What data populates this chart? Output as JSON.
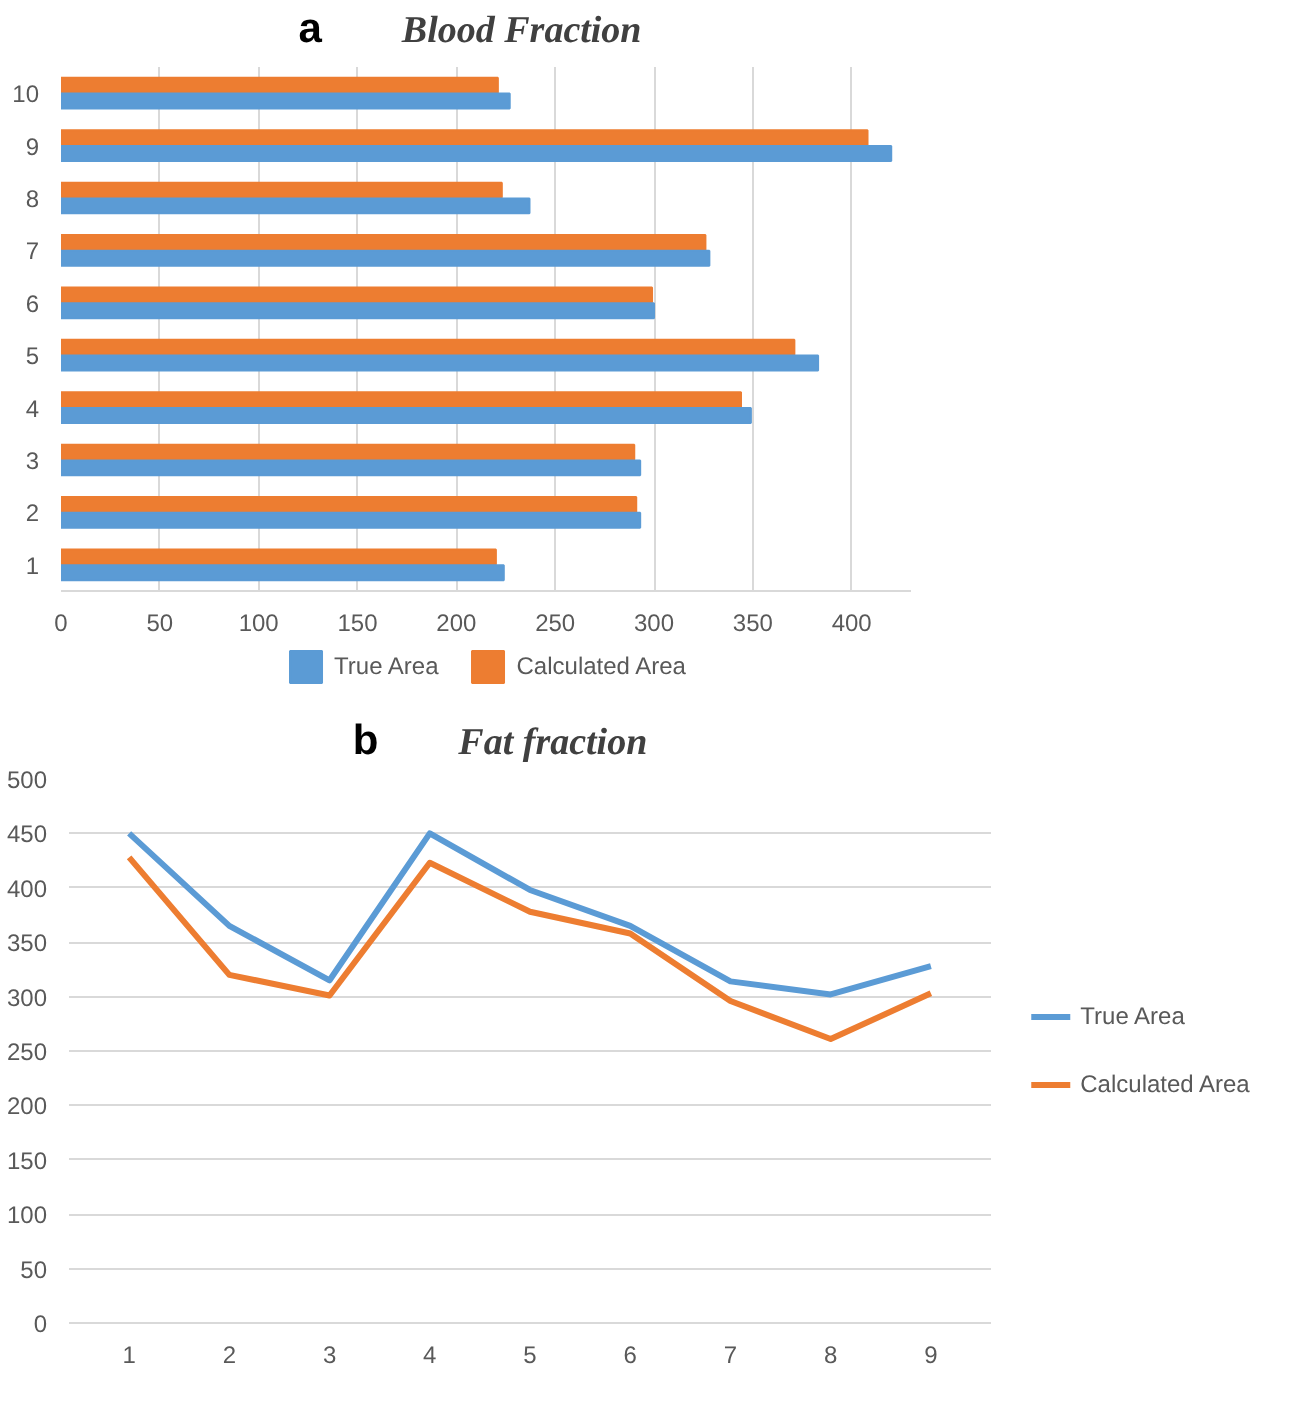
{
  "chart_data": [
    {
      "type": "bar",
      "orientation": "horizontal",
      "title": "Blood Fraction",
      "annotations": [
        "a"
      ],
      "categories": [
        "10",
        "9",
        "8",
        "7",
        "6",
        "5",
        "4",
        "3",
        "2",
        "1"
      ],
      "series": [
        {
          "name": "Calculated Area",
          "color": "#ed7d31",
          "values": [
            221,
            408,
            223,
            326,
            299,
            371,
            344,
            290,
            291,
            220
          ]
        },
        {
          "name": "True Area",
          "color": "#5b9bd5",
          "values": [
            227,
            420,
            237,
            328,
            300,
            383,
            349,
            293,
            293,
            224
          ]
        }
      ],
      "xlim": [
        0,
        430
      ],
      "xticks": [
        0,
        50,
        100,
        150,
        200,
        250,
        300,
        350,
        400
      ],
      "grid": "x",
      "legend": "bottom"
    },
    {
      "type": "line",
      "title": "Fat fraction",
      "annotations": [
        "b"
      ],
      "categories": [
        "1",
        "2",
        "3",
        "4",
        "5",
        "6",
        "7",
        "8",
        "9"
      ],
      "series": [
        {
          "name": "True Area",
          "color": "#5b9bd5",
          "values": [
            450,
            365,
            315,
            450,
            398,
            365,
            314,
            302,
            328
          ]
        },
        {
          "name": "Calculated Area",
          "color": "#ed7d31",
          "values": [
            428,
            320,
            301,
            423,
            378,
            358,
            296,
            261,
            303
          ]
        }
      ],
      "ylim": [
        0,
        500
      ],
      "yticks": [
        0,
        50,
        100,
        150,
        200,
        250,
        300,
        350,
        400,
        450,
        500
      ],
      "grid": "y",
      "legend": "right",
      "marker": "none",
      "line_style": "solid"
    }
  ]
}
